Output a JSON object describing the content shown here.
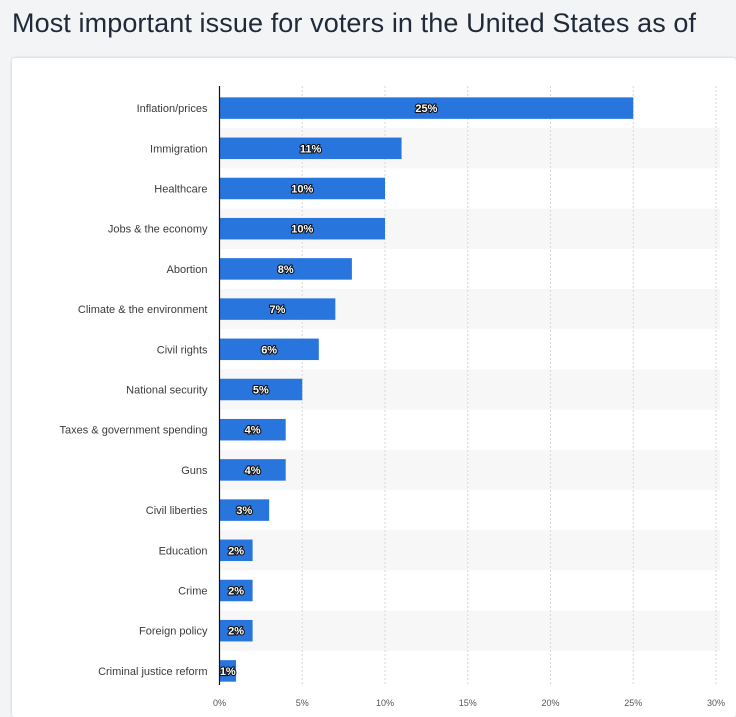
{
  "page": {
    "title": "Most important issue for voters in the United States as of"
  },
  "colors": {
    "bar": "#2876dd",
    "band": "#f7f7f7",
    "grid": "#d7d7d7",
    "axis": "#111111"
  },
  "chart_data": {
    "type": "bar",
    "orientation": "horizontal",
    "title": "Most important issue for voters in the United States as of",
    "xlabel": "",
    "ylabel": "",
    "xlim": [
      0,
      30
    ],
    "ticks": [
      {
        "value": 0,
        "label": "0%"
      },
      {
        "value": 5,
        "label": "5%"
      },
      {
        "value": 10,
        "label": "10%"
      },
      {
        "value": 15,
        "label": "15%"
      },
      {
        "value": 20,
        "label": "20%"
      },
      {
        "value": 25,
        "label": "25%"
      },
      {
        "value": 30,
        "label": "30%"
      }
    ],
    "categories": [
      "Inflation/prices",
      "Immigration",
      "Healthcare",
      "Jobs & the economy",
      "Abortion",
      "Climate & the environment",
      "Civil rights",
      "National security",
      "Taxes & government spending",
      "Guns",
      "Civil liberties",
      "Education",
      "Crime",
      "Foreign policy",
      "Criminal justice reform"
    ],
    "values": [
      25,
      11,
      10,
      10,
      8,
      7,
      6,
      5,
      4,
      4,
      3,
      2,
      2,
      2,
      1
    ],
    "value_labels": [
      "25%",
      "11%",
      "10%",
      "10%",
      "8%",
      "7%",
      "6%",
      "5%",
      "4%",
      "4%",
      "3%",
      "2%",
      "2%",
      "2%",
      "1%"
    ],
    "grid": true,
    "legend": "none"
  }
}
